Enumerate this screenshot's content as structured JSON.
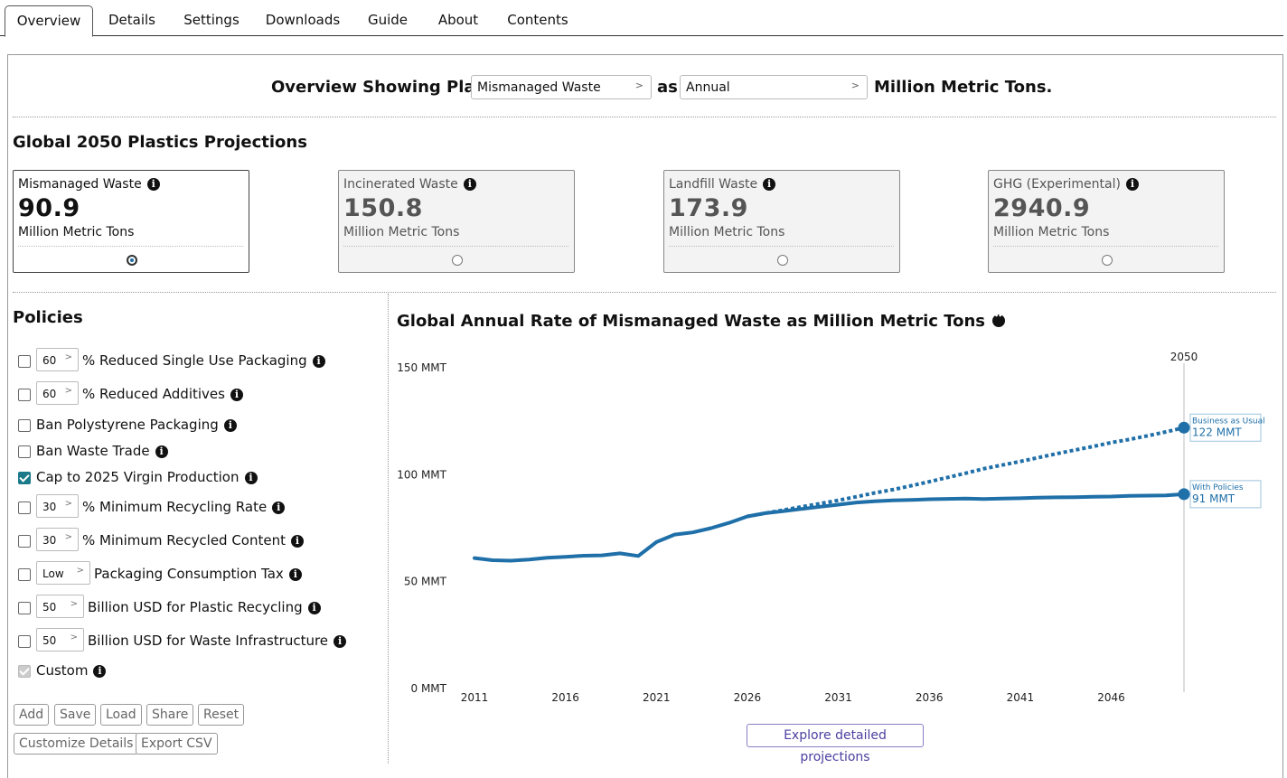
{
  "tabs": [
    {
      "label": "Overview",
      "active": true
    },
    {
      "label": "Details"
    },
    {
      "label": "Settings"
    },
    {
      "label": "Downloads"
    },
    {
      "label": "Guide"
    },
    {
      "label": "About"
    },
    {
      "label": "Contents"
    }
  ],
  "headline": {
    "prefix": "Overview Showing Plastic",
    "metric_select": "Mismanaged Waste",
    "middle": "as",
    "mode_select": "Annual",
    "suffix": "Million Metric Tons."
  },
  "projections": {
    "title": "Global 2050 Plastics Projections",
    "cards": [
      {
        "name": "Mismanaged Waste",
        "value": "90.9",
        "unit": "Million Metric Tons",
        "selected": true
      },
      {
        "name": "Incinerated Waste",
        "value": "150.8",
        "unit": "Million Metric Tons",
        "selected": false
      },
      {
        "name": "Landfill Waste",
        "value": "173.9",
        "unit": "Million Metric Tons",
        "selected": false
      },
      {
        "name": "GHG (Experimental)",
        "value": "2940.9",
        "unit": "Million Metric Tons",
        "selected": false
      }
    ]
  },
  "policies": {
    "title": "Policies",
    "items": [
      {
        "label": "% Reduced Single Use Packaging",
        "value": "60",
        "checked": false
      },
      {
        "label": "% Reduced Additives",
        "value": "60",
        "checked": false
      },
      {
        "label": "Ban Polystyrene Packaging",
        "checked": false
      },
      {
        "label": "Ban Waste Trade",
        "checked": false
      },
      {
        "label": "Cap to 2025 Virgin Production",
        "checked": true
      },
      {
        "label": "% Minimum Recycling Rate",
        "value": "30",
        "checked": false
      },
      {
        "label": "% Minimum Recycled Content",
        "value": "30",
        "checked": false
      },
      {
        "label": "Packaging Consumption Tax",
        "value": "Low",
        "checked": false
      },
      {
        "label": "Billion USD for Plastic Recycling",
        "value": "50",
        "checked": false
      },
      {
        "label": "Billion USD for Waste Infrastructure",
        "value": "50",
        "checked": false
      },
      {
        "label": "Custom",
        "checked": true,
        "disabled": true
      }
    ],
    "buttons": [
      "Add",
      "Save",
      "Load",
      "Share",
      "Reset"
    ],
    "buttons2": [
      "Customize Details",
      "Export CSV"
    ]
  },
  "chart_data": {
    "type": "line",
    "title": "Global Annual Rate of Mismanaged Waste as Million Metric Tons",
    "x_tick_labels": [
      "2011",
      "2016",
      "2021",
      "2026",
      "2031",
      "2036",
      "2041",
      "2046"
    ],
    "y_tick_labels": [
      "0 MMT",
      "50 MMT",
      "100 MMT",
      "150 MMT"
    ],
    "ylim": [
      0,
      150
    ],
    "xlim": [
      2011,
      2050
    ],
    "marker_label": "2050",
    "series": [
      {
        "name": "With Policies",
        "style": "solid",
        "color": "#1f6fa8",
        "x": [
          2011,
          2012,
          2013,
          2014,
          2015,
          2016,
          2017,
          2018,
          2019,
          2020,
          2021,
          2022,
          2023,
          2024,
          2025,
          2026,
          2027,
          2028,
          2029,
          2030,
          2031,
          2032,
          2033,
          2034,
          2035,
          2036,
          2037,
          2038,
          2039,
          2040,
          2041,
          2042,
          2043,
          2044,
          2045,
          2046,
          2047,
          2048,
          2049,
          2050
        ],
        "values": [
          61,
          60,
          59.8,
          60.3,
          61.2,
          61.6,
          62.1,
          62.3,
          63.2,
          62,
          68.5,
          72,
          73,
          75,
          77.5,
          80.5,
          82,
          83,
          84,
          85,
          86,
          87,
          87.6,
          88,
          88.2,
          88.5,
          88.7,
          88.8,
          88.6,
          88.8,
          89,
          89.3,
          89.4,
          89.5,
          89.7,
          89.8,
          90.1,
          90.2,
          90.3,
          90.9
        ],
        "end_label": "91 MMT"
      },
      {
        "name": "Business as Usual",
        "style": "dotted",
        "color": "#1f6fa8",
        "x": [
          2026,
          2027,
          2028,
          2029,
          2030,
          2031,
          2032,
          2033,
          2034,
          2035,
          2036,
          2037,
          2038,
          2039,
          2040,
          2041,
          2042,
          2043,
          2044,
          2045,
          2046,
          2047,
          2048,
          2049,
          2050
        ],
        "values": [
          80.5,
          82,
          83.5,
          85,
          86.5,
          88,
          89.7,
          91.5,
          93,
          94.8,
          96.7,
          98.7,
          100.7,
          102.8,
          104.5,
          106.2,
          108,
          109.8,
          111.5,
          113.2,
          115,
          116.5,
          118.2,
          120,
          122
        ],
        "end_label": "122 MMT"
      }
    ]
  },
  "explore_button": "Explore detailed projections",
  "colors": {
    "series": "#1f6fa8",
    "checked": "#1a7a8a",
    "explore": "#4b3fa0"
  }
}
